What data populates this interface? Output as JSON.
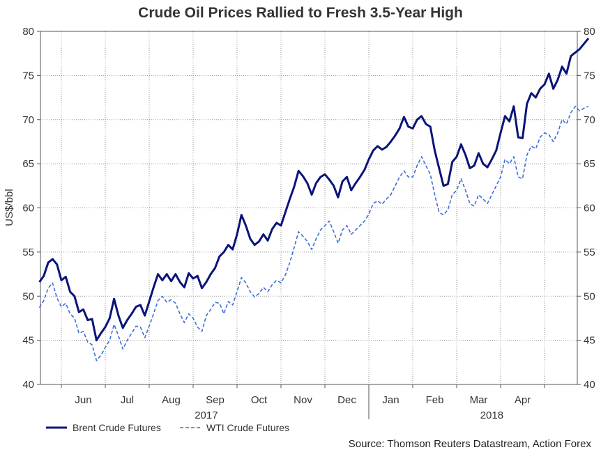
{
  "chart_data": {
    "type": "line",
    "title": "Crude Oil Prices Rallied to Fresh 3.5-Year High",
    "ylabel": "US$/bbl",
    "ylim": [
      40,
      80
    ],
    "yticks": [
      "40",
      "45",
      "50",
      "55",
      "60",
      "65",
      "70",
      "75",
      "80"
    ],
    "xlim_months": [
      0,
      12.3
    ],
    "month_labels": [
      {
        "label": "Jun",
        "pos": 0.5
      },
      {
        "label": "Jul",
        "pos": 1.5
      },
      {
        "label": "Aug",
        "pos": 2.5
      },
      {
        "label": "Sep",
        "pos": 3.5
      },
      {
        "label": "Oct",
        "pos": 4.5
      },
      {
        "label": "Nov",
        "pos": 5.5
      },
      {
        "label": "Dec",
        "pos": 6.5
      },
      {
        "label": "Jan",
        "pos": 7.5
      },
      {
        "label": "Feb",
        "pos": 8.5
      },
      {
        "label": "Mar",
        "pos": 9.5
      },
      {
        "label": "Apr",
        "pos": 10.5
      }
    ],
    "month_boundaries": [
      0,
      1,
      2,
      3,
      4,
      5,
      6,
      7,
      8,
      9,
      10,
      11
    ],
    "year_labels": [
      {
        "label": "2017",
        "pos": 3.3
      },
      {
        "label": "2018",
        "pos": 9.8
      }
    ],
    "grid": true,
    "legend_position": "bottom-left",
    "series": [
      {
        "name": "Brent Crude Futures",
        "color": "#0a1478",
        "style": "solid",
        "points": [
          [
            -0.5,
            51.6
          ],
          [
            -0.4,
            52.3
          ],
          [
            -0.3,
            53.8
          ],
          [
            -0.2,
            54.2
          ],
          [
            -0.1,
            53.6
          ],
          [
            0.0,
            51.8
          ],
          [
            0.1,
            52.2
          ],
          [
            0.2,
            50.5
          ],
          [
            0.3,
            50.0
          ],
          [
            0.4,
            48.2
          ],
          [
            0.5,
            48.5
          ],
          [
            0.6,
            47.3
          ],
          [
            0.7,
            47.4
          ],
          [
            0.8,
            45.0
          ],
          [
            0.9,
            45.8
          ],
          [
            1.0,
            46.5
          ],
          [
            1.1,
            47.5
          ],
          [
            1.2,
            49.7
          ],
          [
            1.3,
            47.8
          ],
          [
            1.4,
            46.4
          ],
          [
            1.5,
            47.3
          ],
          [
            1.6,
            48.0
          ],
          [
            1.7,
            48.8
          ],
          [
            1.8,
            49.0
          ],
          [
            1.9,
            47.8
          ],
          [
            2.0,
            49.4
          ],
          [
            2.1,
            51.0
          ],
          [
            2.2,
            52.5
          ],
          [
            2.3,
            51.8
          ],
          [
            2.4,
            52.5
          ],
          [
            2.5,
            51.7
          ],
          [
            2.6,
            52.5
          ],
          [
            2.7,
            51.6
          ],
          [
            2.8,
            51.0
          ],
          [
            2.9,
            52.6
          ],
          [
            3.0,
            52.0
          ],
          [
            3.1,
            52.3
          ],
          [
            3.2,
            50.9
          ],
          [
            3.3,
            51.6
          ],
          [
            3.4,
            52.5
          ],
          [
            3.5,
            53.2
          ],
          [
            3.6,
            54.5
          ],
          [
            3.7,
            55.0
          ],
          [
            3.8,
            55.8
          ],
          [
            3.9,
            55.3
          ],
          [
            4.0,
            57.0
          ],
          [
            4.1,
            59.2
          ],
          [
            4.2,
            58.0
          ],
          [
            4.3,
            56.5
          ],
          [
            4.4,
            55.8
          ],
          [
            4.5,
            56.2
          ],
          [
            4.6,
            57.0
          ],
          [
            4.7,
            56.3
          ],
          [
            4.8,
            57.6
          ],
          [
            4.9,
            58.3
          ],
          [
            5.0,
            58.0
          ],
          [
            5.1,
            59.5
          ],
          [
            5.2,
            61.0
          ],
          [
            5.3,
            62.4
          ],
          [
            5.4,
            64.2
          ],
          [
            5.5,
            63.6
          ],
          [
            5.6,
            62.8
          ],
          [
            5.7,
            61.5
          ],
          [
            5.8,
            62.8
          ],
          [
            5.9,
            63.5
          ],
          [
            6.0,
            63.8
          ],
          [
            6.1,
            63.2
          ],
          [
            6.2,
            62.5
          ],
          [
            6.3,
            61.2
          ],
          [
            6.4,
            63.0
          ],
          [
            6.5,
            63.5
          ],
          [
            6.6,
            62.0
          ],
          [
            6.7,
            62.8
          ],
          [
            6.8,
            63.5
          ],
          [
            6.9,
            64.3
          ],
          [
            7.0,
            65.5
          ],
          [
            7.1,
            66.5
          ],
          [
            7.2,
            67.0
          ],
          [
            7.3,
            66.6
          ],
          [
            7.4,
            66.9
          ],
          [
            7.5,
            67.5
          ],
          [
            7.6,
            68.2
          ],
          [
            7.7,
            69.0
          ],
          [
            7.8,
            70.3
          ],
          [
            7.9,
            69.2
          ],
          [
            8.0,
            69.0
          ],
          [
            8.1,
            70.0
          ],
          [
            8.2,
            70.4
          ],
          [
            8.3,
            69.5
          ],
          [
            8.4,
            69.2
          ],
          [
            8.5,
            66.5
          ],
          [
            8.6,
            64.5
          ],
          [
            8.7,
            62.5
          ],
          [
            8.8,
            62.7
          ],
          [
            8.9,
            65.2
          ],
          [
            9.0,
            65.8
          ],
          [
            9.1,
            67.2
          ],
          [
            9.2,
            66.0
          ],
          [
            9.3,
            64.5
          ],
          [
            9.4,
            64.8
          ],
          [
            9.5,
            66.2
          ],
          [
            9.6,
            65.0
          ],
          [
            9.7,
            64.6
          ],
          [
            9.8,
            65.5
          ],
          [
            9.9,
            66.5
          ],
          [
            10.0,
            68.5
          ],
          [
            10.1,
            70.4
          ],
          [
            10.2,
            69.8
          ],
          [
            10.3,
            71.5
          ],
          [
            10.4,
            68.0
          ],
          [
            10.5,
            67.9
          ],
          [
            10.6,
            71.8
          ],
          [
            10.7,
            73.0
          ],
          [
            10.8,
            72.5
          ],
          [
            10.9,
            73.5
          ],
          [
            11.0,
            74.0
          ],
          [
            11.1,
            75.2
          ],
          [
            11.2,
            73.5
          ],
          [
            11.3,
            74.5
          ],
          [
            11.4,
            76.0
          ],
          [
            11.5,
            75.2
          ],
          [
            11.6,
            77.2
          ],
          [
            11.7,
            77.6
          ],
          [
            11.8,
            78.0
          ],
          [
            11.9,
            78.6
          ],
          [
            12.0,
            79.2
          ]
        ]
      },
      {
        "name": "WTI Crude Futures",
        "color": "#3a6fd8",
        "style": "dashed",
        "points": [
          [
            -0.5,
            48.7
          ],
          [
            -0.4,
            49.5
          ],
          [
            -0.3,
            50.9
          ],
          [
            -0.2,
            51.5
          ],
          [
            -0.1,
            49.8
          ],
          [
            0.0,
            48.8
          ],
          [
            0.1,
            49.2
          ],
          [
            0.2,
            48.0
          ],
          [
            0.3,
            47.5
          ],
          [
            0.4,
            45.8
          ],
          [
            0.5,
            46.0
          ],
          [
            0.6,
            44.8
          ],
          [
            0.7,
            44.5
          ],
          [
            0.8,
            42.7
          ],
          [
            0.9,
            43.3
          ],
          [
            1.0,
            44.2
          ],
          [
            1.1,
            45.0
          ],
          [
            1.2,
            46.8
          ],
          [
            1.3,
            45.5
          ],
          [
            1.4,
            44.0
          ],
          [
            1.5,
            45.0
          ],
          [
            1.6,
            45.8
          ],
          [
            1.7,
            46.6
          ],
          [
            1.8,
            46.5
          ],
          [
            1.9,
            45.3
          ],
          [
            2.0,
            46.6
          ],
          [
            2.1,
            48.0
          ],
          [
            2.2,
            49.5
          ],
          [
            2.3,
            50.0
          ],
          [
            2.4,
            49.3
          ],
          [
            2.5,
            49.6
          ],
          [
            2.6,
            49.2
          ],
          [
            2.7,
            48.0
          ],
          [
            2.8,
            47.0
          ],
          [
            2.9,
            48.0
          ],
          [
            3.0,
            47.5
          ],
          [
            3.1,
            46.5
          ],
          [
            3.2,
            46.0
          ],
          [
            3.3,
            47.8
          ],
          [
            3.4,
            48.5
          ],
          [
            3.5,
            49.3
          ],
          [
            3.6,
            49.2
          ],
          [
            3.7,
            48.0
          ],
          [
            3.8,
            49.4
          ],
          [
            3.9,
            49.0
          ],
          [
            4.0,
            50.5
          ],
          [
            4.1,
            52.1
          ],
          [
            4.2,
            51.5
          ],
          [
            4.3,
            50.5
          ],
          [
            4.4,
            49.9
          ],
          [
            4.5,
            50.3
          ],
          [
            4.6,
            51.0
          ],
          [
            4.7,
            50.5
          ],
          [
            4.8,
            51.3
          ],
          [
            4.9,
            51.8
          ],
          [
            5.0,
            51.5
          ],
          [
            5.1,
            52.4
          ],
          [
            5.2,
            53.8
          ],
          [
            5.3,
            55.5
          ],
          [
            5.4,
            57.3
          ],
          [
            5.5,
            56.8
          ],
          [
            5.6,
            56.2
          ],
          [
            5.7,
            55.3
          ],
          [
            5.8,
            56.5
          ],
          [
            5.9,
            57.5
          ],
          [
            6.0,
            58.0
          ],
          [
            6.1,
            58.5
          ],
          [
            6.2,
            57.3
          ],
          [
            6.3,
            56.0
          ],
          [
            6.4,
            57.5
          ],
          [
            6.5,
            58.0
          ],
          [
            6.6,
            57.0
          ],
          [
            6.7,
            57.5
          ],
          [
            6.8,
            58.0
          ],
          [
            6.9,
            58.5
          ],
          [
            7.0,
            59.3
          ],
          [
            7.1,
            60.5
          ],
          [
            7.2,
            60.8
          ],
          [
            7.3,
            60.4
          ],
          [
            7.4,
            61.0
          ],
          [
            7.5,
            61.5
          ],
          [
            7.6,
            62.5
          ],
          [
            7.7,
            63.5
          ],
          [
            7.8,
            64.2
          ],
          [
            7.9,
            63.5
          ],
          [
            8.0,
            63.5
          ],
          [
            8.1,
            64.8
          ],
          [
            8.2,
            65.8
          ],
          [
            8.3,
            64.8
          ],
          [
            8.4,
            63.8
          ],
          [
            8.5,
            61.5
          ],
          [
            8.6,
            59.5
          ],
          [
            8.7,
            59.2
          ],
          [
            8.8,
            59.8
          ],
          [
            8.9,
            61.5
          ],
          [
            9.0,
            62.0
          ],
          [
            9.1,
            63.3
          ],
          [
            9.2,
            62.0
          ],
          [
            9.3,
            60.5
          ],
          [
            9.4,
            60.2
          ],
          [
            9.5,
            61.5
          ],
          [
            9.6,
            61.0
          ],
          [
            9.7,
            60.5
          ],
          [
            9.8,
            61.5
          ],
          [
            9.9,
            62.5
          ],
          [
            10.0,
            63.5
          ],
          [
            10.1,
            65.5
          ],
          [
            10.2,
            65.0
          ],
          [
            10.3,
            65.8
          ],
          [
            10.4,
            63.5
          ],
          [
            10.5,
            63.3
          ],
          [
            10.6,
            66.0
          ],
          [
            10.7,
            67.0
          ],
          [
            10.8,
            66.7
          ],
          [
            10.9,
            68.0
          ],
          [
            11.0,
            68.5
          ],
          [
            11.1,
            68.3
          ],
          [
            11.2,
            67.5
          ],
          [
            11.3,
            68.5
          ],
          [
            11.4,
            70.0
          ],
          [
            11.5,
            69.5
          ],
          [
            11.6,
            70.8
          ],
          [
            11.7,
            71.5
          ],
          [
            11.8,
            71.0
          ],
          [
            11.9,
            71.3
          ],
          [
            12.0,
            71.5
          ]
        ]
      }
    ]
  },
  "legend": [
    {
      "label": "Brent Crude Futures"
    },
    {
      "label": "WTI Crude Futures"
    }
  ],
  "source": "Source: Thomson Reuters Datastream, Action Forex"
}
